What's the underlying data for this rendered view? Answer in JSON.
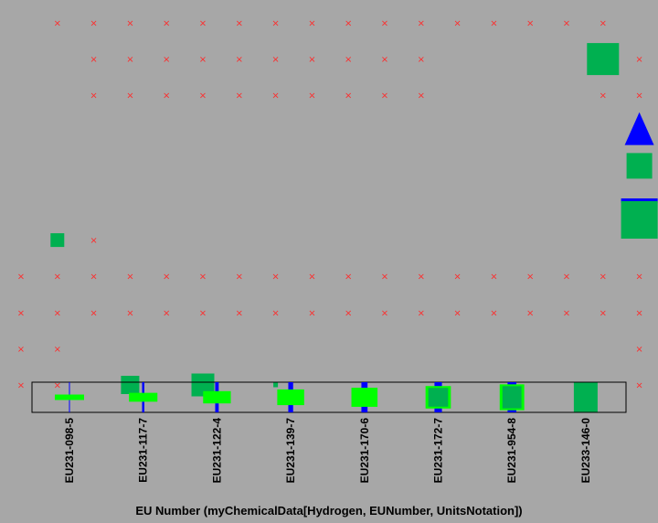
{
  "chart_data": {
    "type": "scatter",
    "xlabel": "EU Number (myChemicalData[Hydrogen, EUNumber, UnitsNotation])",
    "ylabel": "",
    "title": "",
    "legend_categories": [
      "EU231-098-5",
      "EU231-117-7",
      "EU231-122-4",
      "EU231-139-7",
      "EU231-170-6",
      "EU231-172-7",
      "EU231-954-8",
      "EU233-146-0"
    ],
    "legend_position": "bottom",
    "grid": {
      "columns": 18,
      "rows": 11,
      "missing_marker": "×",
      "missing_color": "#ff2a2a",
      "empty_cells": [
        [
          0,
          1
        ],
        [
          0,
          2
        ],
        [
          0,
          3
        ],
        [
          0,
          4
        ],
        [
          0,
          5
        ],
        [
          0,
          6
        ],
        [
          0,
          7
        ],
        [
          0,
          8
        ],
        [
          0,
          9
        ],
        [
          0,
          10
        ],
        [
          0,
          11
        ],
        [
          0,
          12
        ],
        [
          0,
          13
        ],
        [
          0,
          14
        ],
        [
          0,
          15
        ],
        [
          0,
          16
        ],
        [
          1,
          2
        ],
        [
          1,
          3
        ],
        [
          1,
          4
        ],
        [
          1,
          5
        ],
        [
          1,
          6
        ],
        [
          1,
          7
        ],
        [
          1,
          8
        ],
        [
          1,
          9
        ],
        [
          1,
          10
        ],
        [
          1,
          11
        ],
        [
          1,
          16
        ],
        [
          1,
          17
        ],
        [
          2,
          2
        ],
        [
          2,
          3
        ],
        [
          2,
          4
        ],
        [
          2,
          5
        ],
        [
          2,
          6
        ],
        [
          2,
          7
        ],
        [
          2,
          8
        ],
        [
          2,
          9
        ],
        [
          2,
          10
        ],
        [
          2,
          11
        ],
        [
          2,
          16
        ],
        [
          2,
          17
        ],
        [
          3,
          17
        ],
        [
          4,
          17
        ],
        [
          5,
          17
        ],
        [
          6,
          2
        ],
        [
          7,
          0
        ],
        [
          7,
          1
        ],
        [
          7,
          2
        ],
        [
          7,
          3
        ],
        [
          7,
          4
        ],
        [
          7,
          5
        ],
        [
          7,
          6
        ],
        [
          7,
          7
        ],
        [
          7,
          8
        ],
        [
          7,
          9
        ],
        [
          7,
          10
        ],
        [
          7,
          11
        ],
        [
          7,
          12
        ],
        [
          7,
          13
        ],
        [
          7,
          14
        ],
        [
          7,
          15
        ],
        [
          7,
          16
        ],
        [
          7,
          17
        ],
        [
          8,
          0
        ],
        [
          8,
          1
        ],
        [
          8,
          2
        ],
        [
          8,
          3
        ],
        [
          8,
          4
        ],
        [
          8,
          5
        ],
        [
          8,
          6
        ],
        [
          8,
          7
        ],
        [
          8,
          8
        ],
        [
          8,
          9
        ],
        [
          8,
          10
        ],
        [
          8,
          11
        ],
        [
          8,
          12
        ],
        [
          8,
          13
        ],
        [
          8,
          14
        ],
        [
          8,
          15
        ],
        [
          8,
          16
        ],
        [
          8,
          17
        ],
        [
          9,
          0
        ],
        [
          9,
          1
        ],
        [
          9,
          17
        ],
        [
          10,
          0
        ],
        [
          10,
          1
        ],
        [
          10,
          17
        ]
      ],
      "value_cells": [
        {
          "row": 1,
          "col": 16,
          "level": 7
        },
        {
          "row": 6,
          "col": 1,
          "level": 3
        },
        {
          "row": 10,
          "col": 3,
          "level": 4
        },
        {
          "row": 10,
          "col": 5,
          "level": 5
        },
        {
          "row": 10,
          "col": 7,
          "level": 1
        }
      ],
      "stack": {
        "col": 17,
        "parts": [
          {
            "shape": "triangle",
            "color": "#0000ff",
            "rows": [
              3,
              4
            ]
          },
          {
            "shape": "square",
            "color": "#00b050",
            "rows": [
              4,
              5
            ]
          },
          {
            "shape": "bar",
            "color": "#0000ff",
            "rows": [
              5,
              5
            ]
          },
          {
            "shape": "square",
            "color": "#00b050",
            "rows": [
              5,
              6
            ]
          }
        ]
      }
    },
    "colors": {
      "background": "#a7a7a7",
      "missing": "#ff2a2a",
      "square": "#00b050",
      "bar": "#0000ff",
      "legend_bright": "#00ff00"
    }
  }
}
